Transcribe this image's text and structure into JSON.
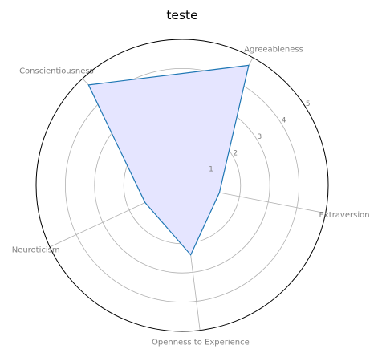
{
  "chart_data": {
    "type": "radar",
    "title": "teste",
    "categories": [
      "Extraversion",
      "Agreeableness",
      "Conscientiousness",
      "Neuroticism",
      "Openness to Experience"
    ],
    "values": [
      1.3,
      4.7,
      4.7,
      1.4,
      2.4
    ],
    "r_ticks": [
      "1",
      "2",
      "3",
      "4",
      "5"
    ],
    "rlim": [
      0,
      5
    ],
    "grid": true,
    "colors": {
      "line": "#1f77b4",
      "fill": "#e5e5ff",
      "grid": "#b0b0b0",
      "frame": "#000000",
      "label": "#808080"
    }
  }
}
